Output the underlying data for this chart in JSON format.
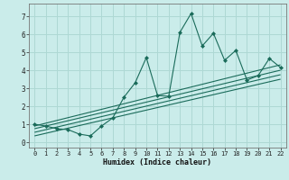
{
  "xlabel": "Humidex (Indice chaleur)",
  "bg_color": "#caecea",
  "grid_color": "#aed8d4",
  "line_color": "#1a6b5a",
  "xlim": [
    -0.5,
    22.5
  ],
  "ylim": [
    -0.3,
    7.7
  ],
  "xticks": [
    0,
    1,
    2,
    3,
    4,
    5,
    6,
    7,
    8,
    9,
    10,
    11,
    12,
    13,
    14,
    15,
    16,
    17,
    18,
    19,
    20,
    21,
    22
  ],
  "yticks": [
    0,
    1,
    2,
    3,
    4,
    5,
    6,
    7
  ],
  "main_line_x": [
    0,
    1,
    2,
    3,
    4,
    5,
    6,
    7,
    8,
    9,
    10,
    11,
    12,
    13,
    14,
    15,
    16,
    17,
    18,
    19,
    20,
    21,
    22
  ],
  "main_line_y": [
    1.0,
    0.9,
    0.75,
    0.7,
    0.45,
    0.35,
    0.9,
    1.35,
    2.5,
    3.3,
    4.7,
    2.6,
    2.55,
    6.1,
    7.15,
    5.35,
    6.05,
    4.55,
    5.1,
    3.45,
    3.7,
    4.65,
    4.15
  ],
  "regression_lines": [
    {
      "x": [
        0,
        22
      ],
      "y": [
        0.9,
        4.3
      ]
    },
    {
      "x": [
        0,
        22
      ],
      "y": [
        0.75,
        4.0
      ]
    },
    {
      "x": [
        0,
        22
      ],
      "y": [
        0.55,
        3.75
      ]
    },
    {
      "x": [
        0,
        22
      ],
      "y": [
        0.35,
        3.5
      ]
    }
  ]
}
